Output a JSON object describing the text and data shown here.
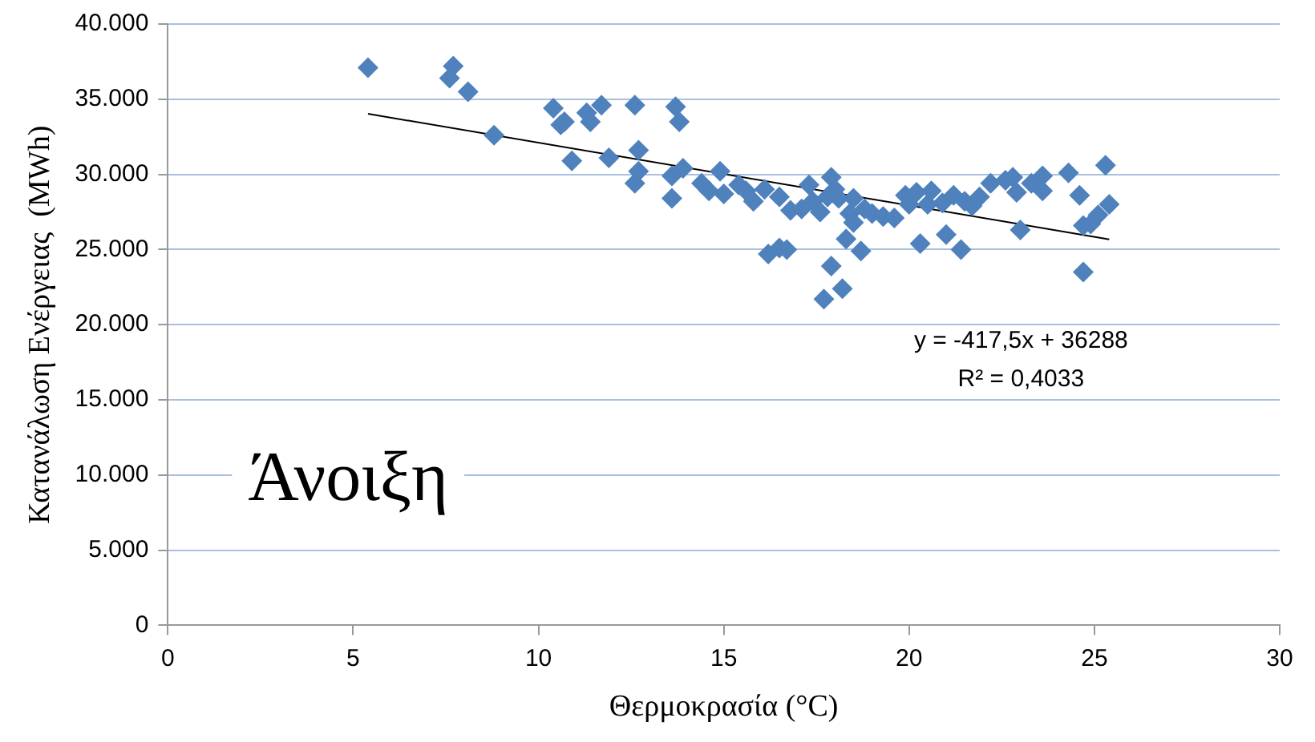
{
  "chart_data": {
    "type": "scatter",
    "xlabel": "Θερμοκρασία (°C)",
    "ylabel": "Κατανάλωση Ενέργειας  (MWh)",
    "annotations": [
      "Άνοιξη",
      "y = -417,5x + 36288",
      "R² = 0,4033"
    ],
    "xlim": [
      0,
      30
    ],
    "xticks": [
      0,
      5,
      10,
      15,
      20,
      25,
      30
    ],
    "ylim": [
      0,
      40000
    ],
    "yticks": [
      {
        "value": 0,
        "label": "0"
      },
      {
        "value": 5000,
        "label": "5.000"
      },
      {
        "value": 10000,
        "label": "10.000"
      },
      {
        "value": 15000,
        "label": "15.000"
      },
      {
        "value": 20000,
        "label": "20.000"
      },
      {
        "value": 25000,
        "label": "25.000"
      },
      {
        "value": 30000,
        "label": "30.000"
      },
      {
        "value": 35000,
        "label": "35.000"
      },
      {
        "value": 40000,
        "label": "40.000"
      }
    ],
    "grid": "y",
    "legend": false,
    "marker": "diamond",
    "series": [
      {
        "type": "scatter",
        "color": "#4f81bd",
        "x": [
          5.4,
          7.7,
          7.6,
          8.1,
          8.8,
          10.4,
          10.6,
          10.7,
          10.9,
          11.3,
          11.4,
          11.7,
          11.9,
          12.6,
          12.6,
          12.7,
          12.7,
          13.6,
          13.6,
          13.7,
          13.8,
          13.9,
          14.4,
          14.6,
          14.9,
          15.0,
          15.4,
          15.6,
          15.8,
          16.1,
          16.2,
          16.5,
          16.5,
          16.7,
          16.8,
          17.1,
          17.3,
          17.4,
          17.6,
          17.7,
          17.8,
          17.9,
          17.9,
          18.0,
          18.1,
          18.2,
          18.3,
          18.4,
          18.5,
          18.5,
          18.7,
          18.8,
          19.0,
          19.3,
          19.6,
          19.9,
          20.0,
          20.2,
          20.3,
          20.5,
          20.6,
          20.9,
          21.0,
          21.2,
          21.4,
          21.5,
          21.7,
          21.9,
          22.2,
          22.6,
          22.8,
          22.9,
          23.0,
          23.3,
          23.6,
          23.6,
          24.3,
          24.6,
          24.7,
          24.7,
          24.9,
          25.1,
          25.3,
          25.4
        ],
        "values": [
          37100,
          37200,
          36400,
          35500,
          32600,
          34400,
          33300,
          33500,
          30900,
          34100,
          33500,
          34600,
          31100,
          34600,
          29400,
          31600,
          30200,
          29900,
          28400,
          34500,
          33500,
          30400,
          29400,
          28900,
          30200,
          28700,
          29300,
          28900,
          28200,
          29000,
          24700,
          25100,
          28500,
          25000,
          27600,
          27700,
          29300,
          28200,
          27500,
          21700,
          28500,
          23900,
          29800,
          29000,
          28400,
          22400,
          25700,
          27400,
          28400,
          26800,
          24900,
          27700,
          27400,
          27200,
          27100,
          28600,
          28000,
          28800,
          25400,
          28000,
          28900,
          28100,
          26000,
          28600,
          25000,
          28200,
          27900,
          28500,
          29400,
          29600,
          29800,
          28800,
          26300,
          29400,
          29900,
          28900,
          30100,
          28600,
          23500,
          26600,
          26700,
          27300,
          30600,
          28000
        ]
      },
      {
        "type": "line",
        "color": "#000000",
        "marker": "none",
        "x": [
          5.4,
          25.4
        ],
        "values": [
          34030,
          25680
        ]
      }
    ]
  }
}
